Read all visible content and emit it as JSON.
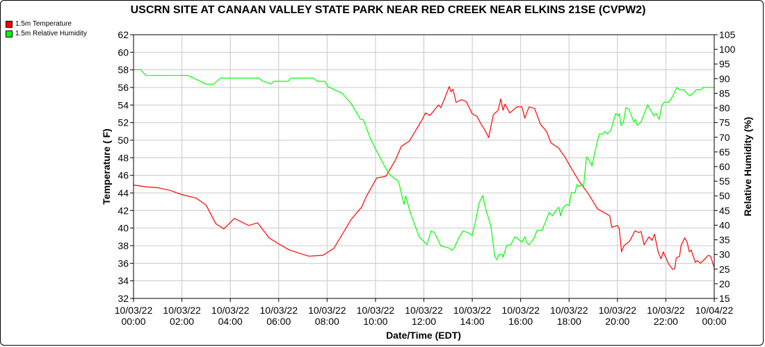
{
  "chart_data": {
    "type": "line",
    "title": "USCRN SITE AT CANAAN VALLEY STATE PARK NEAR RED CREEK NEAR ELKINS 21SE (CVPW2)",
    "xlabel": "Date/Time (EDT)",
    "ylabel": "Temperature ( F)",
    "y2label": "Relative Humidity (%)",
    "xlim_hours": [
      0,
      24
    ],
    "ylim": [
      32,
      62
    ],
    "y2lim": [
      15,
      105
    ],
    "yticks": [
      "32",
      "34",
      "36",
      "38",
      "40",
      "42",
      "44",
      "46",
      "48",
      "50",
      "52",
      "54",
      "56",
      "58",
      "60",
      "62"
    ],
    "y2ticks": [
      "15",
      "20",
      "25",
      "30",
      "35",
      "40",
      "45",
      "50",
      "55",
      "60",
      "65",
      "70",
      "75",
      "80",
      "85",
      "90",
      "95",
      "100",
      "105"
    ],
    "xticks": [
      [
        "10/03/22",
        "00:00"
      ],
      [
        "10/03/22",
        "02:00"
      ],
      [
        "10/03/22",
        "04:00"
      ],
      [
        "10/03/22",
        "06:00"
      ],
      [
        "10/03/22",
        "08:00"
      ],
      [
        "10/03/22",
        "10:00"
      ],
      [
        "10/03/22",
        "12:00"
      ],
      [
        "10/03/22",
        "14:00"
      ],
      [
        "10/03/22",
        "16:00"
      ],
      [
        "10/03/22",
        "18:00"
      ],
      [
        "10/03/22",
        "20:00"
      ],
      [
        "10/03/22",
        "22:00"
      ],
      [
        "10/04/22",
        "00:00"
      ]
    ],
    "grid": true,
    "legend_position": "top-left",
    "series": [
      {
        "name": "1.5m Temperature",
        "axis": "left",
        "color": "#ff0000",
        "points": [
          [
            0,
            44.9
          ],
          [
            0.5,
            44.7
          ],
          [
            1,
            44.6
          ],
          [
            1.5,
            44.3
          ],
          [
            2,
            43.8
          ],
          [
            2.6,
            43.4
          ],
          [
            3,
            42.6
          ],
          [
            3.4,
            40.5
          ],
          [
            3.73,
            39.9
          ],
          [
            4.17,
            41.1
          ],
          [
            4.75,
            40.3
          ],
          [
            5.13,
            40.6
          ],
          [
            5.6,
            38.9
          ],
          [
            6,
            38.2
          ],
          [
            6.45,
            37.5
          ],
          [
            7.25,
            36.8
          ],
          [
            7.83,
            36.9
          ],
          [
            8.28,
            37.7
          ],
          [
            9,
            41
          ],
          [
            9.43,
            42.4
          ],
          [
            9.62,
            43.6
          ],
          [
            10.05,
            45.7
          ],
          [
            10.43,
            45.9
          ],
          [
            10.82,
            47.7
          ],
          [
            11.07,
            49.3
          ],
          [
            11.4,
            49.9
          ],
          [
            11.92,
            52.3
          ],
          [
            12.07,
            53.1
          ],
          [
            12.25,
            52.8
          ],
          [
            12.6,
            54
          ],
          [
            12.7,
            53.7
          ],
          [
            12.85,
            54.7
          ],
          [
            13.05,
            56.1
          ],
          [
            13.12,
            55.5
          ],
          [
            13.2,
            55.8
          ],
          [
            13.33,
            54.3
          ],
          [
            13.55,
            54.6
          ],
          [
            13.75,
            54.4
          ],
          [
            14,
            53
          ],
          [
            14.2,
            52.7
          ],
          [
            14.33,
            52
          ],
          [
            14.53,
            51.1
          ],
          [
            14.68,
            50.3
          ],
          [
            14.87,
            52.9
          ],
          [
            15.07,
            53.4
          ],
          [
            15.18,
            54.7
          ],
          [
            15.27,
            53.4
          ],
          [
            15.35,
            54.1
          ],
          [
            15.55,
            53.1
          ],
          [
            15.85,
            53.8
          ],
          [
            16.05,
            53.8
          ],
          [
            16.17,
            52.5
          ],
          [
            16.35,
            53.8
          ],
          [
            16.58,
            53.6
          ],
          [
            16.82,
            51.8
          ],
          [
            17.07,
            51
          ],
          [
            17.25,
            49.7
          ],
          [
            17.57,
            49.1
          ],
          [
            17.85,
            48
          ],
          [
            18.03,
            47.1
          ],
          [
            18.42,
            45.3
          ],
          [
            18.8,
            43.9
          ],
          [
            19.17,
            42.2
          ],
          [
            19.68,
            41.4
          ],
          [
            19.77,
            40.1
          ],
          [
            20,
            40.3
          ],
          [
            20.08,
            39.9
          ],
          [
            20.17,
            37.3
          ],
          [
            20.27,
            38
          ],
          [
            20.5,
            38.5
          ],
          [
            20.73,
            39.7
          ],
          [
            20.87,
            39.5
          ],
          [
            20.98,
            39.6
          ],
          [
            21.1,
            38.1
          ],
          [
            21.3,
            39
          ],
          [
            21.43,
            38.6
          ],
          [
            21.53,
            39.3
          ],
          [
            21.68,
            37.3
          ],
          [
            21.8,
            36.5
          ],
          [
            21.9,
            37.3
          ],
          [
            22.12,
            35.9
          ],
          [
            22.28,
            35.3
          ],
          [
            22.37,
            35.4
          ],
          [
            22.43,
            36.6
          ],
          [
            22.57,
            36.8
          ],
          [
            22.63,
            38
          ],
          [
            22.78,
            38.9
          ],
          [
            22.88,
            38.4
          ],
          [
            22.97,
            37.3
          ],
          [
            23.05,
            37.5
          ],
          [
            23.22,
            36.1
          ],
          [
            23.3,
            36.3
          ],
          [
            23.43,
            36
          ],
          [
            23.58,
            36.4
          ],
          [
            23.75,
            36.9
          ],
          [
            23.85,
            36.8
          ],
          [
            24,
            35.5
          ]
        ]
      },
      {
        "name": "1.5m Relative Humidity",
        "axis": "right",
        "color": "#00ff00",
        "points": [
          [
            0,
            93.1
          ],
          [
            0.3,
            93.1
          ],
          [
            0.5,
            91.1
          ],
          [
            2.25,
            91.1
          ],
          [
            2.5,
            90.1
          ],
          [
            2.75,
            89.1
          ],
          [
            3,
            88.1
          ],
          [
            3.3,
            88.1
          ],
          [
            3.45,
            89.1
          ],
          [
            3.6,
            90.2
          ],
          [
            5.17,
            90.2
          ],
          [
            5.35,
            89.1
          ],
          [
            5.67,
            88.2
          ],
          [
            5.8,
            89.1
          ],
          [
            6.38,
            89.1
          ],
          [
            6.5,
            90.2
          ],
          [
            7.42,
            90.2
          ],
          [
            7.6,
            89.1
          ],
          [
            7.9,
            89.1
          ],
          [
            8.05,
            87.2
          ],
          [
            8.62,
            85
          ],
          [
            9,
            81.5
          ],
          [
            9.37,
            76.2
          ],
          [
            9.5,
            76
          ],
          [
            9.78,
            69.7
          ],
          [
            10,
            66.1
          ],
          [
            10.42,
            59.4
          ],
          [
            10.62,
            57
          ],
          [
            10.95,
            55
          ],
          [
            11.18,
            47.1
          ],
          [
            11.25,
            50
          ],
          [
            11.42,
            44.8
          ],
          [
            11.8,
            36.1
          ],
          [
            12.13,
            33.3
          ],
          [
            12.3,
            38.1
          ],
          [
            12.45,
            37.3
          ],
          [
            12.7,
            32.9
          ],
          [
            13.05,
            32.2
          ],
          [
            13.15,
            31.4
          ],
          [
            13.25,
            32.2
          ],
          [
            13.47,
            36.1
          ],
          [
            13.62,
            38.1
          ],
          [
            13.85,
            37.3
          ],
          [
            14,
            36.5
          ],
          [
            14.13,
            41.2
          ],
          [
            14.28,
            47.5
          ],
          [
            14.43,
            50.1
          ],
          [
            14.57,
            45.2
          ],
          [
            14.77,
            39.6
          ],
          [
            14.93,
            29.4
          ],
          [
            15.02,
            28.2
          ],
          [
            15.1,
            30
          ],
          [
            15.25,
            30
          ],
          [
            15.27,
            29
          ],
          [
            15.43,
            33.2
          ],
          [
            15.58,
            33.2
          ],
          [
            15.77,
            36.1
          ],
          [
            15.92,
            35.1
          ],
          [
            16.05,
            34.2
          ],
          [
            16.18,
            36.1
          ],
          [
            16.25,
            34
          ],
          [
            16.35,
            33.3
          ],
          [
            16.55,
            35.5
          ],
          [
            16.68,
            38.2
          ],
          [
            16.88,
            38.2
          ],
          [
            17.03,
            41.2
          ],
          [
            17.18,
            44.4
          ],
          [
            17.32,
            43.2
          ],
          [
            17.47,
            45.2
          ],
          [
            17.58,
            46.1
          ],
          [
            17.65,
            43.2
          ],
          [
            17.75,
            46
          ],
          [
            17.9,
            47.1
          ],
          [
            18,
            46.7
          ],
          [
            18.1,
            51.1
          ],
          [
            18.25,
            51.1
          ],
          [
            18.33,
            53.9
          ],
          [
            18.43,
            53.1
          ],
          [
            18.53,
            54
          ],
          [
            18.6,
            53.1
          ],
          [
            18.72,
            63.3
          ],
          [
            18.8,
            62.7
          ],
          [
            18.95,
            60.2
          ],
          [
            19.1,
            66.1
          ],
          [
            19.25,
            71.1
          ],
          [
            19.4,
            71.1
          ],
          [
            19.48,
            72
          ],
          [
            19.58,
            71.1
          ],
          [
            19.73,
            72.4
          ],
          [
            19.93,
            78.1
          ],
          [
            20.03,
            77.3
          ],
          [
            20.08,
            78.1
          ],
          [
            20.15,
            74
          ],
          [
            20.25,
            75.2
          ],
          [
            20.35,
            80.1
          ],
          [
            20.48,
            79.5
          ],
          [
            20.68,
            75.2
          ],
          [
            20.75,
            76.1
          ],
          [
            20.82,
            74
          ],
          [
            20.97,
            75.2
          ],
          [
            21.25,
            81.1
          ],
          [
            21.5,
            77.3
          ],
          [
            21.6,
            78.1
          ],
          [
            21.73,
            76.1
          ],
          [
            21.83,
            80.7
          ],
          [
            21.93,
            82
          ],
          [
            22.13,
            82
          ],
          [
            22.28,
            84
          ],
          [
            22.45,
            87
          ],
          [
            22.57,
            86.2
          ],
          [
            22.75,
            86.2
          ],
          [
            22.87,
            85
          ],
          [
            23,
            84.1
          ],
          [
            23.15,
            85.2
          ],
          [
            23.25,
            86.2
          ],
          [
            23.45,
            86.2
          ],
          [
            23.55,
            87
          ],
          [
            24,
            87
          ]
        ]
      }
    ]
  }
}
